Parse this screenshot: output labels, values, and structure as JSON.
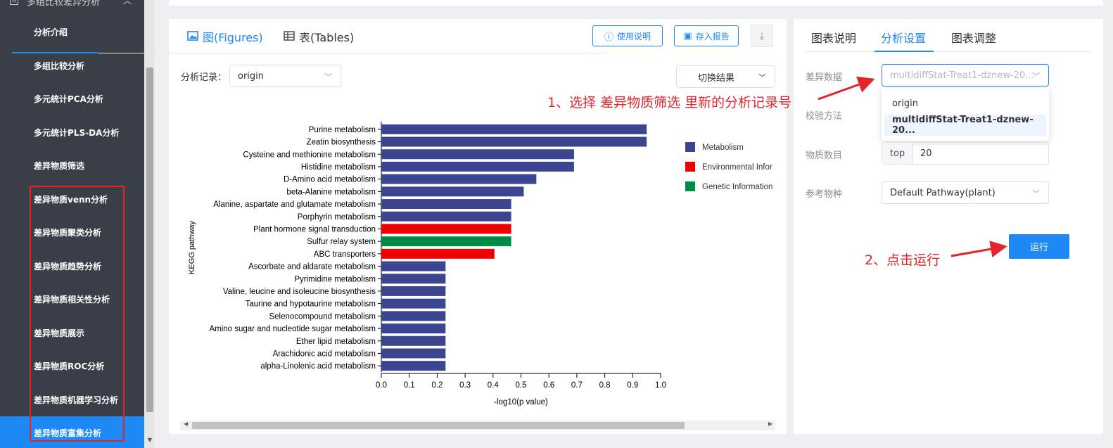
{
  "sidebar": {
    "header": "多组比较差异分析",
    "items": [
      {
        "label": "分析介绍"
      },
      {
        "label": "多组比较分析"
      },
      {
        "label": "多元统计PCA分析"
      },
      {
        "label": "多元统计PLS-DA分析"
      },
      {
        "label": "差异物质筛选"
      },
      {
        "label": "差异物质venn分析"
      },
      {
        "label": "差异物质聚类分析"
      },
      {
        "label": "差异物质趋势分析"
      },
      {
        "label": "差异物质相关性分析"
      },
      {
        "label": "差异物质展示"
      },
      {
        "label": "差异物质ROC分析"
      },
      {
        "label": "差异物质机器学习分析"
      },
      {
        "label": "差异物质富集分析"
      }
    ],
    "active_index": 12
  },
  "main": {
    "tabs": [
      {
        "label": "图(Figures)"
      },
      {
        "label": "表(Tables)"
      }
    ],
    "help_button": "使用说明",
    "save_button": "存入报告",
    "record_label": "分析记录：",
    "record_value": "origin",
    "switch_result": "切换结果"
  },
  "chart_data": {
    "type": "bar",
    "orientation": "horizontal",
    "ylabel": "KEGG pathway",
    "xlabel": "-log10(p value)",
    "xlim": [
      0,
      1.0
    ],
    "xticks": [
      "0.0",
      "0.1",
      "0.2",
      "0.3",
      "0.4",
      "0.5",
      "0.6",
      "0.7",
      "0.8",
      "0.9",
      "1.0"
    ],
    "categories": [
      "Purine metabolism",
      "Zeatin biosynthesis",
      "Cysteine and methionine metabolism",
      "Histidine metabolism",
      "D-Amino acid metabolism",
      "beta-Alanine metabolism",
      "Alanine, aspartate and glutamate metabolism",
      "Porphyrin metabolism",
      "Plant hormone signal transduction",
      "Sulfur relay system",
      "ABC transporters",
      "Ascorbate and aldarate metabolism",
      "Pyrimidine metabolism",
      "Valine, leucine and isoleucine biosynthesis",
      "Taurine and hypotaurine metabolism",
      "Selenocompound metabolism",
      "Amino sugar and nucleotide sugar metabolism",
      "Ether lipid metabolism",
      "Arachidonic acid metabolism",
      "alpha-Linolenic acid metabolism"
    ],
    "values": [
      0.95,
      0.95,
      0.69,
      0.69,
      0.555,
      0.51,
      0.465,
      0.465,
      0.465,
      0.465,
      0.405,
      0.23,
      0.23,
      0.23,
      0.23,
      0.23,
      0.23,
      0.23,
      0.23,
      0.23
    ],
    "groups": [
      0,
      0,
      0,
      0,
      0,
      0,
      0,
      0,
      1,
      2,
      1,
      0,
      0,
      0,
      0,
      0,
      0,
      0,
      0,
      0
    ],
    "legend": [
      {
        "name": "Metabolism",
        "color": "#3c4690"
      },
      {
        "name": "Environmental Infor",
        "color": "#ee0000"
      },
      {
        "name": "Genetic Information",
        "color": "#008b45"
      }
    ],
    "legend_position": "right"
  },
  "right": {
    "tabs": [
      {
        "label": "图表说明"
      },
      {
        "label": "分析设置"
      },
      {
        "label": "图表调整"
      }
    ],
    "diff_label": "差异数据",
    "diff_value": "multidiffStat-Treat1-dznew-20...",
    "dropdown_options": [
      "origin",
      "multidiffStat-Treat1-dznew-20..."
    ],
    "method_label": "校验方法",
    "count_label": "物质数目",
    "count_prefix": "top",
    "count_value": "20",
    "species_label": "参考物种",
    "species_value": "Default Pathway(plant)",
    "run_button": "运行"
  },
  "annotations": {
    "step1": "1、选择 差异物质筛选 里新的分析记录号",
    "step2": "2、点击运行"
  },
  "colors": {
    "accent": "#1e88f5",
    "sidebar_bg": "#3a3f47",
    "annotation_red": "#e3242b"
  }
}
